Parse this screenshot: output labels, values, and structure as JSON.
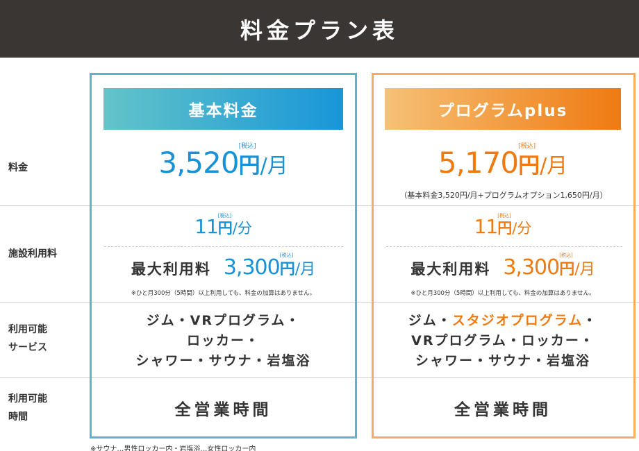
{
  "header": {
    "title": "料金プラン表"
  },
  "rows": {
    "fee": "料金",
    "facility": "施設利用料",
    "services": [
      "利用可能",
      "サービス"
    ],
    "hours": [
      "利用可能",
      "時間"
    ]
  },
  "plans": {
    "basic": {
      "name": "基本料金",
      "price": "3,520",
      "yen": "円",
      "tax": "[税込]",
      "unit": "/月",
      "per_minute": "11",
      "per_minute_unit": "/分",
      "max_label": "最大利用料",
      "max_price": "3,300",
      "max_unit": "/月",
      "max_note": "※ひと月300分（5時間）以上利用しても、料金の加算はありません。",
      "services": [
        "ジム・VRプログラム・",
        "ロッカー・",
        "シャワー・サウナ・岩塩浴"
      ],
      "hours": "全営業時間",
      "accent": "#1892d6"
    },
    "plus": {
      "name": "プログラムplus",
      "price": "5,170",
      "yen": "円",
      "tax": "[税込]",
      "unit": "/月",
      "breakdown": "（基本料金3,520円/月+プログラムオプション1,650円/月）",
      "per_minute": "11",
      "per_minute_unit": "/分",
      "max_label": "最大利用料",
      "max_price": "3,300",
      "max_unit": "/月",
      "max_note": "※ひと月300分（5時間）以上利用しても、料金の加算はありません。",
      "services_line1_prefix": "ジム・",
      "services_line1_highlight": "スタジオプログラム",
      "services_line1_suffix": "・",
      "services": [
        "VRプログラム・ロッカー・",
        "シャワー・サウナ・岩塩浴"
      ],
      "hours": "全営業時間",
      "accent": "#ef7a10"
    }
  },
  "footnote": "※サウナ…男性ロッカー内・岩塩浴…女性ロッカー内"
}
